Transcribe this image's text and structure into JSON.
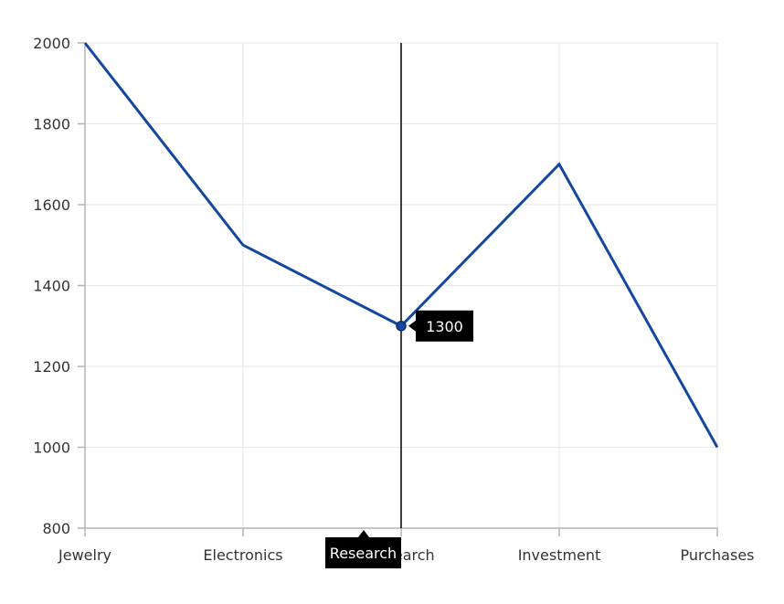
{
  "chart_data": {
    "type": "line",
    "categories": [
      "Jewelry",
      "Electronics",
      "Research",
      "Investment",
      "Purchases"
    ],
    "values": [
      2000,
      1500,
      1300,
      1700,
      1000
    ],
    "ylim": [
      800,
      2000
    ],
    "yticks": [
      800,
      1000,
      1200,
      1400,
      1600,
      1800,
      2000
    ],
    "grid": true,
    "title": "",
    "xlabel": "",
    "ylabel": "",
    "colors": {
      "line": "#1447A0",
      "grid": "#E6E6E6",
      "axis": "#B3B3B3",
      "crosshair": "#000000",
      "tooltip_bg": "#000000"
    },
    "crosshair": {
      "category": "Research",
      "value": "1300"
    }
  }
}
